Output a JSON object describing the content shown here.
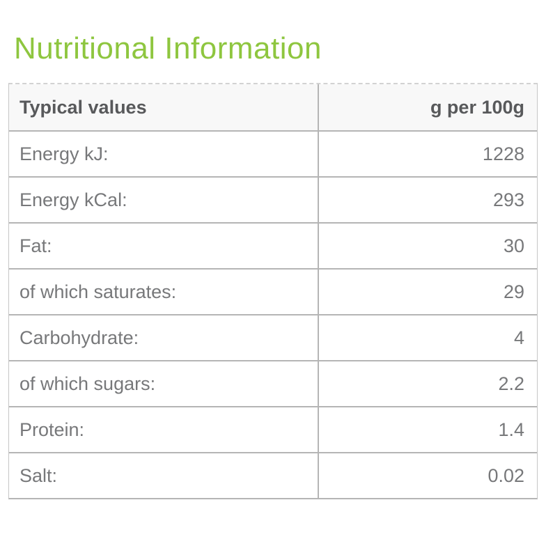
{
  "page": {
    "title": "Nutritional Information"
  },
  "colors": {
    "accent_green": "#8ec63f",
    "header_text_gray": "#58595b",
    "body_text_gray": "#77787a",
    "border_gray": "#b5b5b5",
    "header_bg": "#f8f8f8"
  },
  "table": {
    "header": {
      "label": "Typical values",
      "unit": "g per 100g"
    },
    "rows": [
      {
        "label": "Energy kJ:",
        "value": "1228"
      },
      {
        "label": "Energy kCal:",
        "value": "293"
      },
      {
        "label": "Fat:",
        "value": "30"
      },
      {
        "label": "of which saturates:",
        "value": "29"
      },
      {
        "label": "Carbohydrate:",
        "value": "4"
      },
      {
        "label": "of which sugars:",
        "value": "2.2"
      },
      {
        "label": "Protein:",
        "value": "1.4"
      },
      {
        "label": "Salt:",
        "value": "0.02"
      }
    ]
  }
}
